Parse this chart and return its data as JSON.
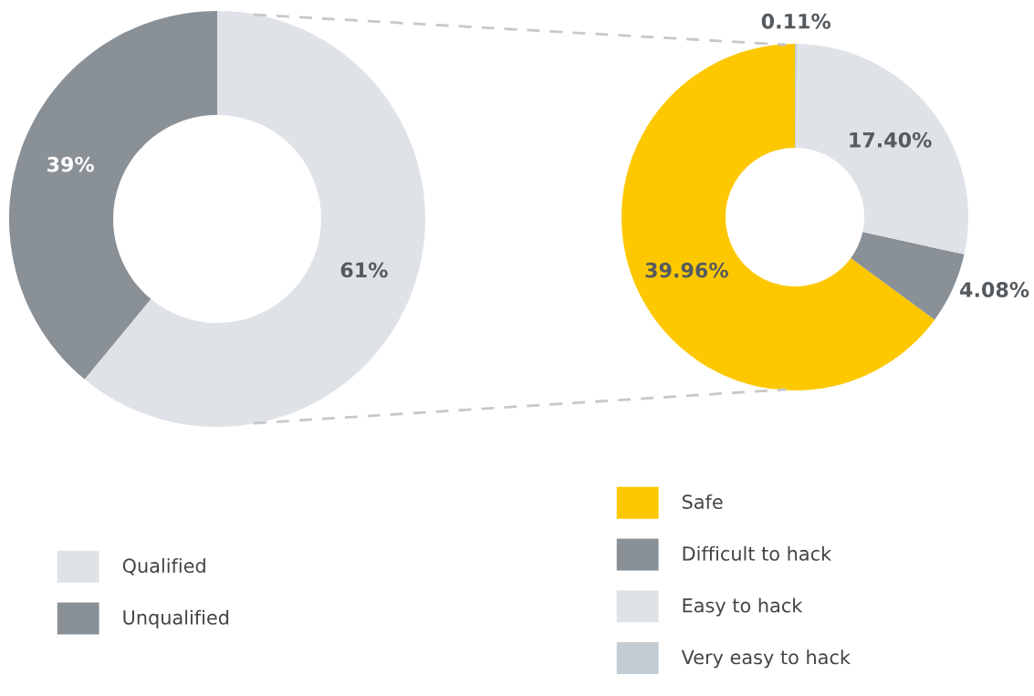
{
  "chart_data": [
    {
      "type": "donut",
      "categories": [
        "Qualified",
        "Unqualified"
      ],
      "values": [
        61,
        39
      ],
      "colors": [
        "#dfe3e7",
        "#899096"
      ],
      "value_labels": [
        "61%",
        "39%"
      ],
      "legend": "bottom"
    },
    {
      "type": "donut",
      "categories": [
        "Safe",
        "Difficult to hack",
        "Easy to hack",
        "Very easy to hack"
      ],
      "values": [
        39.96,
        4.08,
        17.4,
        0.11
      ],
      "colors": [
        "#fdc800",
        "#899096",
        "#dfe3e7",
        "#c3ccd3"
      ],
      "value_labels": [
        "39.96%",
        "4.08%",
        "17.40%",
        "0.11%"
      ],
      "legend": "bottom"
    }
  ]
}
